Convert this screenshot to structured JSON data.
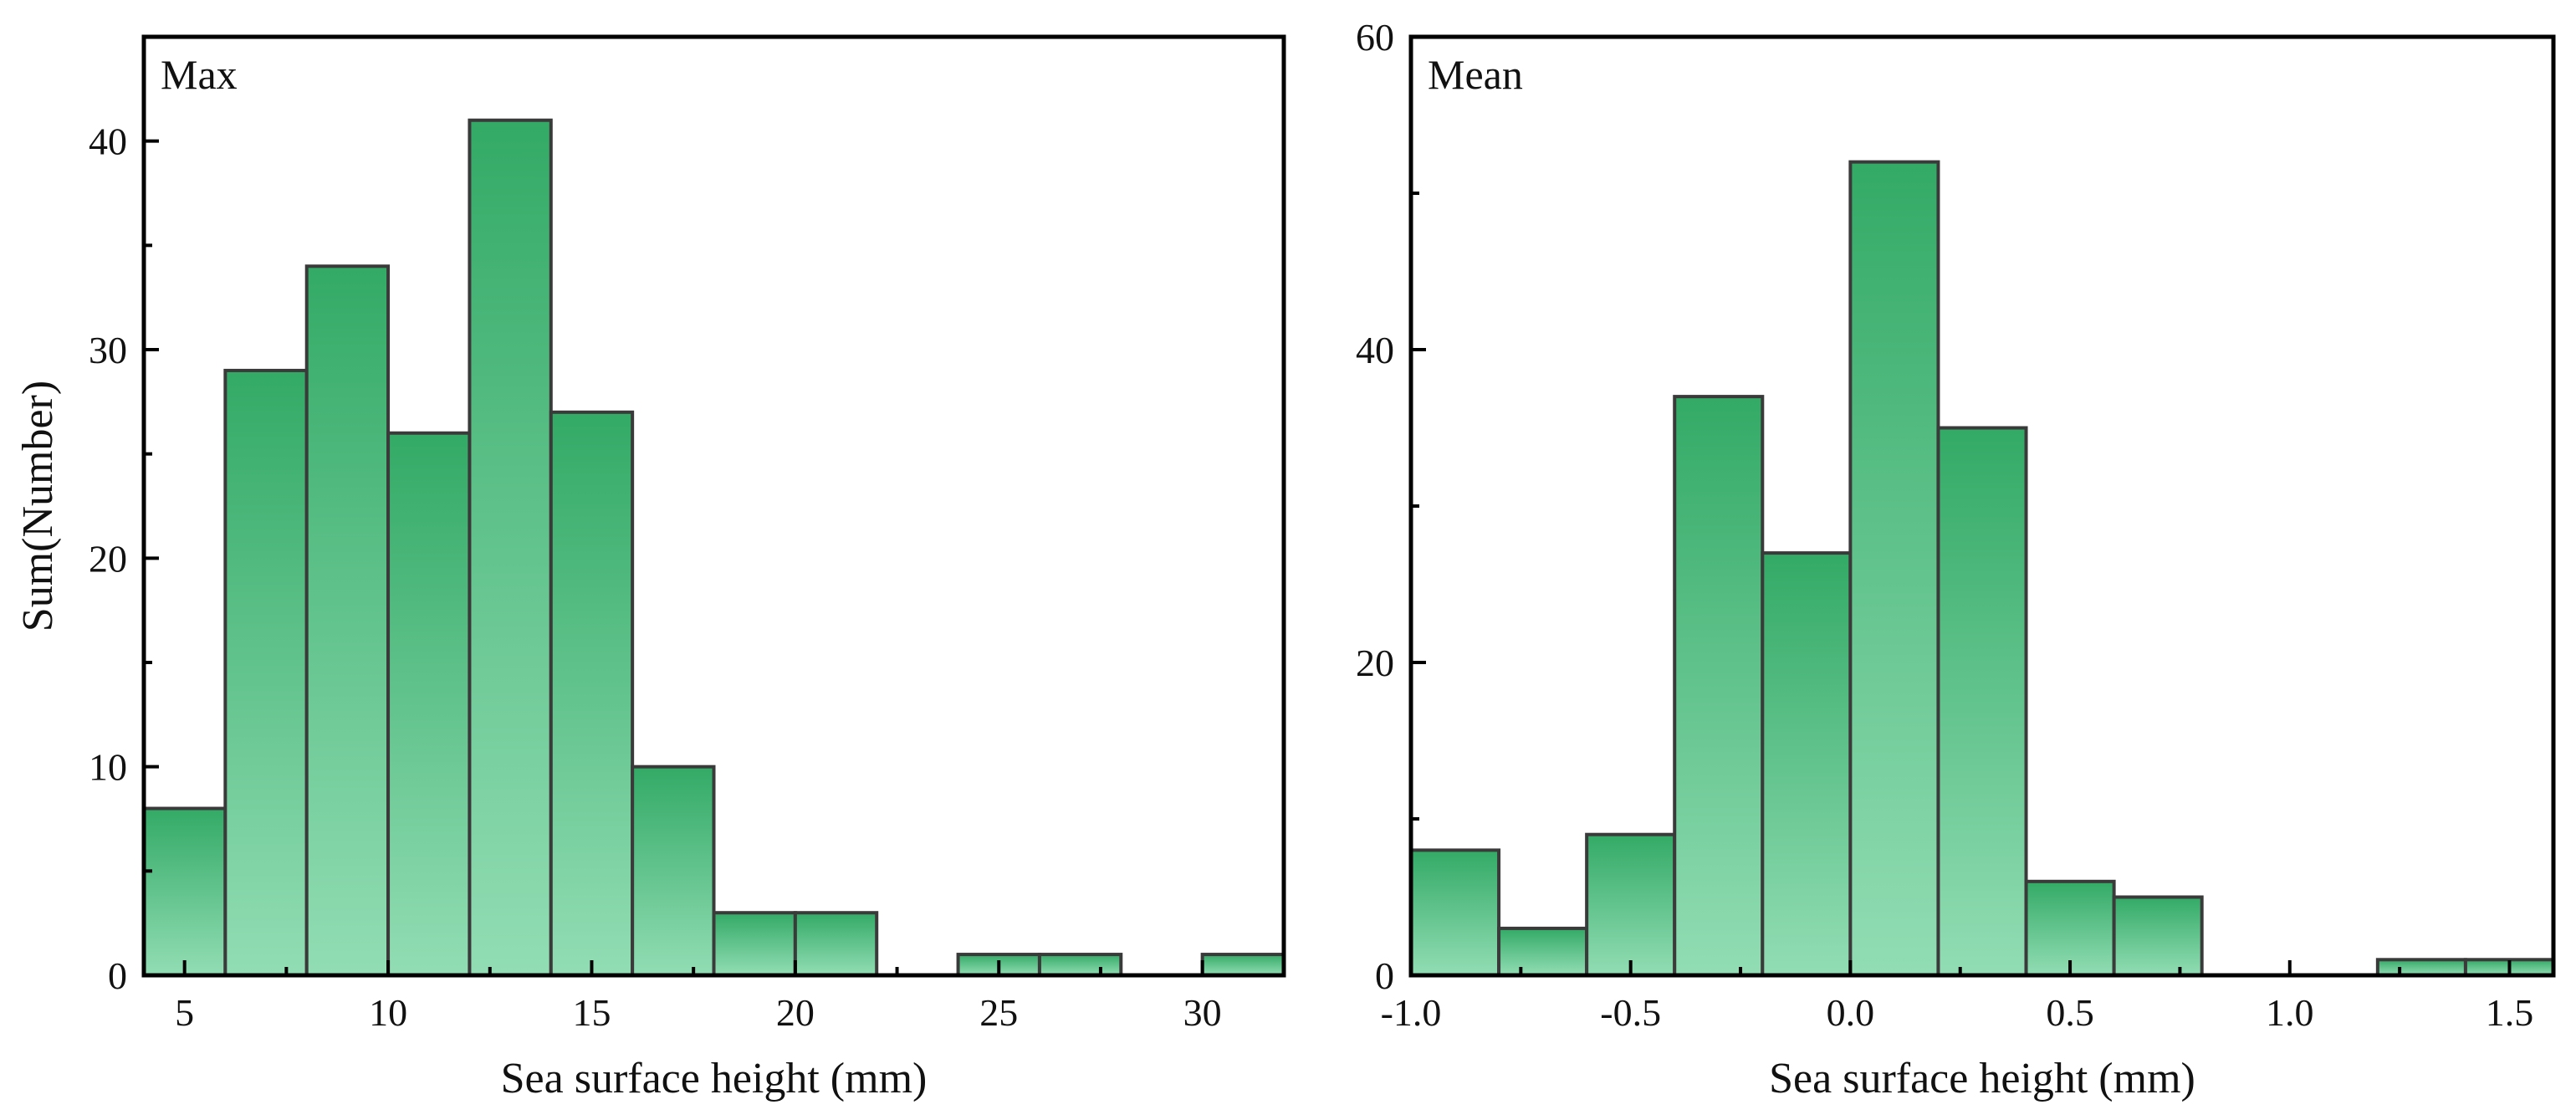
{
  "colors": {
    "bar_top": "#33aa66",
    "bar_bottom": "#92ddb4",
    "bar_edge": "#3a3a3a",
    "axis": "#000000"
  },
  "chart_data": [
    {
      "type": "bar",
      "subtype": "histogram",
      "panel_label": "Max",
      "xlabel": "Sea surface height (mm)",
      "ylabel": "Sum(Number)",
      "xlim": [
        4,
        32
      ],
      "ylim": [
        0,
        45
      ],
      "xticks": [
        5,
        10,
        15,
        20,
        25,
        30
      ],
      "xtick_labels": [
        "5",
        "10",
        "15",
        "20",
        "25",
        "30"
      ],
      "yticks": [
        0,
        10,
        20,
        30,
        40
      ],
      "ytick_labels": [
        "0",
        "10",
        "20",
        "30",
        "40"
      ],
      "grid": false,
      "bins": [
        {
          "x0": 4,
          "x1": 6,
          "value": 8
        },
        {
          "x0": 6,
          "x1": 8,
          "value": 29
        },
        {
          "x0": 8,
          "x1": 10,
          "value": 34
        },
        {
          "x0": 10,
          "x1": 12,
          "value": 26
        },
        {
          "x0": 12,
          "x1": 14,
          "value": 41
        },
        {
          "x0": 14,
          "x1": 16,
          "value": 27
        },
        {
          "x0": 16,
          "x1": 18,
          "value": 10
        },
        {
          "x0": 18,
          "x1": 20,
          "value": 3
        },
        {
          "x0": 20,
          "x1": 22,
          "value": 3
        },
        {
          "x0": 24,
          "x1": 26,
          "value": 1
        },
        {
          "x0": 26,
          "x1": 28,
          "value": 1
        },
        {
          "x0": 30,
          "x1": 32,
          "value": 1
        }
      ]
    },
    {
      "type": "bar",
      "subtype": "histogram",
      "panel_label": "Mean",
      "xlabel": "Sea surface height (mm)",
      "ylabel": "",
      "xlim": [
        -1.0,
        1.6
      ],
      "ylim": [
        0,
        60
      ],
      "xticks": [
        -1.0,
        -0.5,
        0.0,
        0.5,
        1.0,
        1.5
      ],
      "xtick_labels": [
        "-1.0",
        "-0.5",
        "0.0",
        "0.5",
        "1.0",
        "1.5"
      ],
      "yticks": [
        0,
        20,
        40,
        60
      ],
      "ytick_labels": [
        "0",
        "20",
        "40",
        "60"
      ],
      "grid": false,
      "bins": [
        {
          "x0": -1.0,
          "x1": -0.8,
          "value": 8
        },
        {
          "x0": -0.8,
          "x1": -0.6,
          "value": 3
        },
        {
          "x0": -0.6,
          "x1": -0.4,
          "value": 9
        },
        {
          "x0": -0.4,
          "x1": -0.2,
          "value": 37
        },
        {
          "x0": -0.2,
          "x1": 0.0,
          "value": 27
        },
        {
          "x0": 0.0,
          "x1": 0.2,
          "value": 52
        },
        {
          "x0": 0.2,
          "x1": 0.4,
          "value": 35
        },
        {
          "x0": 0.4,
          "x1": 0.6,
          "value": 6
        },
        {
          "x0": 0.6,
          "x1": 0.8,
          "value": 5
        },
        {
          "x0": 1.2,
          "x1": 1.4,
          "value": 1
        },
        {
          "x0": 1.4,
          "x1": 1.6,
          "value": 1
        }
      ]
    }
  ]
}
